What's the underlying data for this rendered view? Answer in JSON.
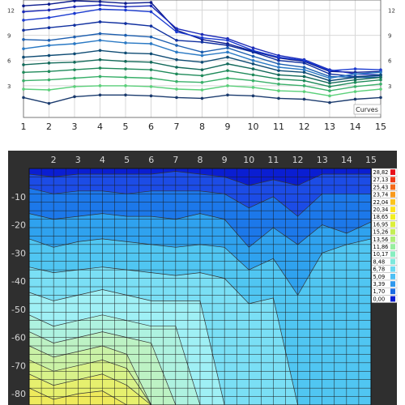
{
  "chart_data": [
    {
      "type": "line",
      "x": [
        1,
        2,
        3,
        4,
        5,
        6,
        7,
        8,
        9,
        10,
        11,
        12,
        13,
        14,
        15
      ],
      "y_ticks": [
        3,
        6,
        9,
        12
      ],
      "ylim": [
        0,
        13
      ],
      "legend_label": "Curves",
      "colors": [
        "#0b1a8c",
        "#1b2ab8",
        "#1b3bd0",
        "#0f2f9f",
        "#1d5fb0",
        "#2a79c4",
        "#0f4c74",
        "#136a5a",
        "#1f8a5a",
        "#3ab06a",
        "#5bd07a",
        "#1b3b6e"
      ],
      "series": [
        [
          12.5,
          12.7,
          13.1,
          13.0,
          12.8,
          12.9,
          9.6,
          8.5,
          8.0,
          7.1,
          6.3,
          5.9,
          4.7,
          4.6,
          4.7
        ],
        [
          11.8,
          12.0,
          12.4,
          12.6,
          12.4,
          12.5,
          9.8,
          9.1,
          8.6,
          7.5,
          6.6,
          6.1,
          4.9,
          4.4,
          4.3
        ],
        [
          10.8,
          11.1,
          11.6,
          12.1,
          12.0,
          11.8,
          9.4,
          8.7,
          8.4,
          7.2,
          6.4,
          6.0,
          4.8,
          5.0,
          4.9
        ],
        [
          9.6,
          9.9,
          10.2,
          10.6,
          10.4,
          10.1,
          8.4,
          8.2,
          7.8,
          7.0,
          6.0,
          5.7,
          4.4,
          4.1,
          4.2
        ],
        [
          8.5,
          8.4,
          8.8,
          9.2,
          9.0,
          8.8,
          7.8,
          7.0,
          7.5,
          6.5,
          5.6,
          5.2,
          4.1,
          4.0,
          4.0
        ],
        [
          7.4,
          7.8,
          8.0,
          8.4,
          8.1,
          8.0,
          7.0,
          6.6,
          7.0,
          6.0,
          5.2,
          4.9,
          3.9,
          4.4,
          4.6
        ],
        [
          6.4,
          6.6,
          6.8,
          7.2,
          6.9,
          6.8,
          6.1,
          5.8,
          6.4,
          5.6,
          4.8,
          4.6,
          3.6,
          4.0,
          4.3
        ],
        [
          5.5,
          5.7,
          5.8,
          6.1,
          5.9,
          5.8,
          5.2,
          4.9,
          5.6,
          5.0,
          4.3,
          4.1,
          3.3,
          3.7,
          4.0
        ],
        [
          4.6,
          4.7,
          4.9,
          5.1,
          5.0,
          4.9,
          4.4,
          4.2,
          4.8,
          4.3,
          3.8,
          3.6,
          2.9,
          3.4,
          3.7
        ],
        [
          3.6,
          3.7,
          3.9,
          4.1,
          4.0,
          3.9,
          3.5,
          3.4,
          3.9,
          3.6,
          3.2,
          3.0,
          2.4,
          2.9,
          3.2
        ],
        [
          2.6,
          2.5,
          2.9,
          3.0,
          3.0,
          2.9,
          2.6,
          2.5,
          3.0,
          2.8,
          2.4,
          2.3,
          1.8,
          2.3,
          2.6
        ],
        [
          1.6,
          0.9,
          1.7,
          1.9,
          1.9,
          1.8,
          1.6,
          1.5,
          1.9,
          1.8,
          1.5,
          1.4,
          1.0,
          1.4,
          1.6
        ]
      ]
    },
    {
      "type": "heatmap",
      "x_ticks": [
        2,
        3,
        4,
        5,
        6,
        7,
        8,
        9,
        10,
        11,
        12,
        13,
        14,
        15
      ],
      "y_ticks": [
        -10,
        -20,
        -30,
        -40,
        -50,
        -60,
        -70,
        -80
      ],
      "xlim": [
        1,
        15
      ],
      "ylim": [
        -84,
        0
      ],
      "colorbar_labels": [
        "28,82",
        "27,13",
        "25,43",
        "23,74",
        "22,04",
        "20,34",
        "18,65",
        "16,95",
        "15,26",
        "13,56",
        "11,86",
        "10,17",
        "8,48",
        "6,78",
        "5,09",
        "3,39",
        "1,70",
        "0,00"
      ],
      "colorbar_colors": [
        "#e8101a",
        "#f03a18",
        "#f46a1a",
        "#f89a1c",
        "#fcc41c",
        "#fde21c",
        "#f2ef22",
        "#dcef3a",
        "#c4ee55",
        "#aeee78",
        "#98eea0",
        "#88eec0",
        "#7ee8dc",
        "#6ad8f0",
        "#4ec0f4",
        "#3298ec",
        "#1c6ce2",
        "#0a1ed2"
      ],
      "band_colors": [
        "#0a1ed2",
        "#1c4ce6",
        "#1c78ea",
        "#2fa2ef",
        "#50c6f2",
        "#7adff5",
        "#9ff0f5",
        "#aef2e0",
        "#bdf2c4",
        "#caf2a6",
        "#d8f28a",
        "#e6f06e",
        "#eeea5c"
      ],
      "boundaries": [
        [
          -2,
          -3,
          -2,
          -2,
          -2,
          -2,
          -1,
          -2,
          -3,
          -6,
          -4,
          -6,
          -2,
          -2,
          -2
        ],
        [
          -7,
          -9,
          -8,
          -8,
          -9,
          -8,
          -8,
          -8,
          -9,
          -14,
          -10,
          -17,
          -9,
          -9,
          -9
        ],
        [
          -16,
          -18,
          -17,
          -16,
          -17,
          -17,
          -18,
          -16,
          -18,
          -28,
          -21,
          -27,
          -20,
          -23,
          -19
        ],
        [
          -25,
          -28,
          -26,
          -25,
          -26,
          -27,
          -28,
          -27,
          -28,
          -36,
          -32,
          -45,
          -30,
          -27,
          -25
        ],
        [
          -35,
          -37,
          -36,
          -35,
          -36,
          -37,
          -38,
          -37,
          -39,
          -48,
          -46,
          -84,
          -84,
          -84,
          -84
        ],
        [
          -44,
          -47,
          -45,
          -43,
          -45,
          -47,
          -47,
          -47,
          -84,
          -84,
          -84,
          -84,
          -84,
          -84,
          -84
        ],
        [
          -52,
          -56,
          -54,
          -52,
          -54,
          -56,
          -56,
          -84,
          -84,
          -84,
          -84,
          -84,
          -84,
          -84,
          -84
        ],
        [
          -58,
          -62,
          -60,
          -58,
          -60,
          -62,
          -84,
          -84,
          -84,
          -84,
          -84,
          -84,
          -84,
          -84,
          -84
        ],
        [
          -63,
          -67,
          -65,
          -63,
          -66,
          -84,
          -84,
          -84,
          -84,
          -84,
          -84,
          -84,
          -84,
          -84,
          -84
        ],
        [
          -68,
          -72,
          -70,
          -68,
          -71,
          -84,
          -84,
          -84,
          -84,
          -84,
          -84,
          -84,
          -84,
          -84,
          -84
        ],
        [
          -73,
          -77,
          -75,
          -73,
          -77,
          -84,
          -84,
          -84,
          -84,
          -84,
          -84,
          -84,
          -84,
          -84,
          -84
        ],
        [
          -78,
          -82,
          -80,
          -79,
          -84,
          -84,
          -84,
          -84,
          -84,
          -84,
          -84,
          -84,
          -84,
          -84,
          -84
        ]
      ]
    }
  ]
}
